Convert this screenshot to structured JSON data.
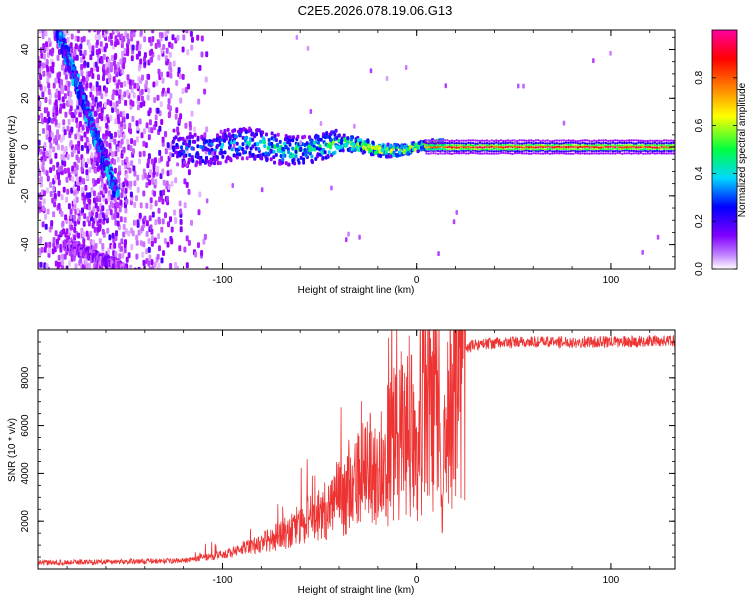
{
  "figure": {
    "title": "C2E5.2026.078.19.06.G13"
  },
  "chart_data": [
    {
      "type": "heatmap",
      "title": "C2E5.2026.078.19.06.G13",
      "xlabel": "Height of straight line (km)",
      "ylabel": "Frequency (Hz)",
      "xlim": [
        -195,
        133
      ],
      "ylim": [
        -50,
        48
      ],
      "xticks": [
        -100,
        0,
        100
      ],
      "yticks": [
        -40,
        -20,
        0,
        20,
        40
      ],
      "grid": false,
      "colorbar": {
        "label": "Normalized spectral amplitude",
        "range": [
          0,
          1
        ],
        "ticks": [
          "0.0",
          "0.2",
          "0.4",
          "0.6",
          "0.8"
        ],
        "tick_values": [
          0.0,
          0.2,
          0.4,
          0.6,
          0.8
        ],
        "colors": [
          "#ffffff",
          "#a000ff",
          "#0000ff",
          "#00d8ff",
          "#00ff40",
          "#ffff00",
          "#ff8000",
          "#ff0000",
          "#ff00a0"
        ]
      },
      "features": [
        {
          "name": "main carrier",
          "x_range": [
            -120,
            133
          ],
          "frequency_hz": 0,
          "peak_amplitude": 1.0
        },
        {
          "name": "diagonal streak",
          "from": [
            -185,
            48
          ],
          "to": [
            -155,
            -18
          ],
          "peak_amplitude": 0.35
        },
        {
          "name": "diagonal streak",
          "from": [
            -180,
            -40
          ],
          "to": [
            -150,
            -50
          ],
          "peak_amplitude": 0.15
        }
      ]
    },
    {
      "type": "line",
      "xlabel": "Height of straight line (km)",
      "ylabel": "SNR (10 * v/v)",
      "xlim": [
        -195,
        133
      ],
      "ylim": [
        0,
        10000
      ],
      "xticks": [
        -100,
        0,
        100
      ],
      "yticks": [
        2000,
        4000,
        6000,
        8000
      ],
      "grid": false,
      "series": [
        {
          "name": "SNR",
          "color": "#ee3333",
          "x": [
            -195,
            -180,
            -160,
            -140,
            -120,
            -100,
            -90,
            -80,
            -70,
            -60,
            -50,
            -40,
            -30,
            -20,
            -10,
            0,
            5,
            10,
            13,
            15,
            20,
            25,
            30,
            40,
            60,
            80,
            100,
            133
          ],
          "y": [
            250,
            280,
            300,
            320,
            350,
            600,
            800,
            1100,
            1400,
            1800,
            2300,
            2900,
            3600,
            4400,
            5300,
            6300,
            7000,
            7300,
            1800,
            6500,
            8000,
            9200,
            9400,
            9450,
            9500,
            9500,
            9500,
            9550
          ]
        }
      ]
    }
  ]
}
